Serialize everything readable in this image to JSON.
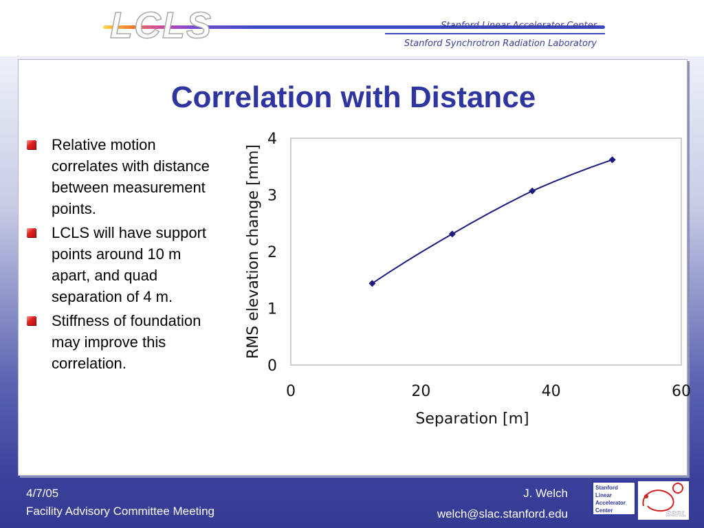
{
  "header": {
    "logo_text": "LCLS",
    "org_line1": "Stanford Linear Accelerator Center",
    "org_line2": "Stanford Synchrotron Radiation Laboratory"
  },
  "slide": {
    "title": "Correlation with Distance",
    "bullets": [
      "Relative motion correlates with distance between measurement points.",
      "LCLS will have support points around 10 m apart, and quad separation of 4 m.",
      "Stiffness of foundation may improve this correlation."
    ]
  },
  "footer": {
    "date": "4/7/05",
    "meeting": "Facility Advisory Committee Meeting",
    "author": "J. Welch",
    "email": "welch@slac.stanford.edu",
    "slac_logo_lines": [
      "Stanford",
      "Linear",
      "Accelerator",
      "Center"
    ],
    "ssrl_logo_text": "SSRL"
  },
  "chart_data": {
    "type": "line",
    "x": [
      12.5,
      24.8,
      37.1,
      49.4
    ],
    "series": [
      {
        "values": [
          1.44,
          2.31,
          3.07,
          3.62
        ]
      }
    ],
    "title": "",
    "xlabel": "Separation [m]",
    "ylabel": "RMS elevation change [mm]",
    "xlim": [
      0,
      60
    ],
    "ylim": [
      0,
      4
    ],
    "xticks": [
      0,
      20,
      40,
      60
    ],
    "yticks": [
      0,
      1,
      2,
      3,
      4
    ],
    "grid": false,
    "line_color": "#1a1a80",
    "marker": "diamond"
  },
  "colors": {
    "title": "#2e35a0",
    "bullet": "#e02020",
    "footer_bg": "#3a3f9a"
  }
}
